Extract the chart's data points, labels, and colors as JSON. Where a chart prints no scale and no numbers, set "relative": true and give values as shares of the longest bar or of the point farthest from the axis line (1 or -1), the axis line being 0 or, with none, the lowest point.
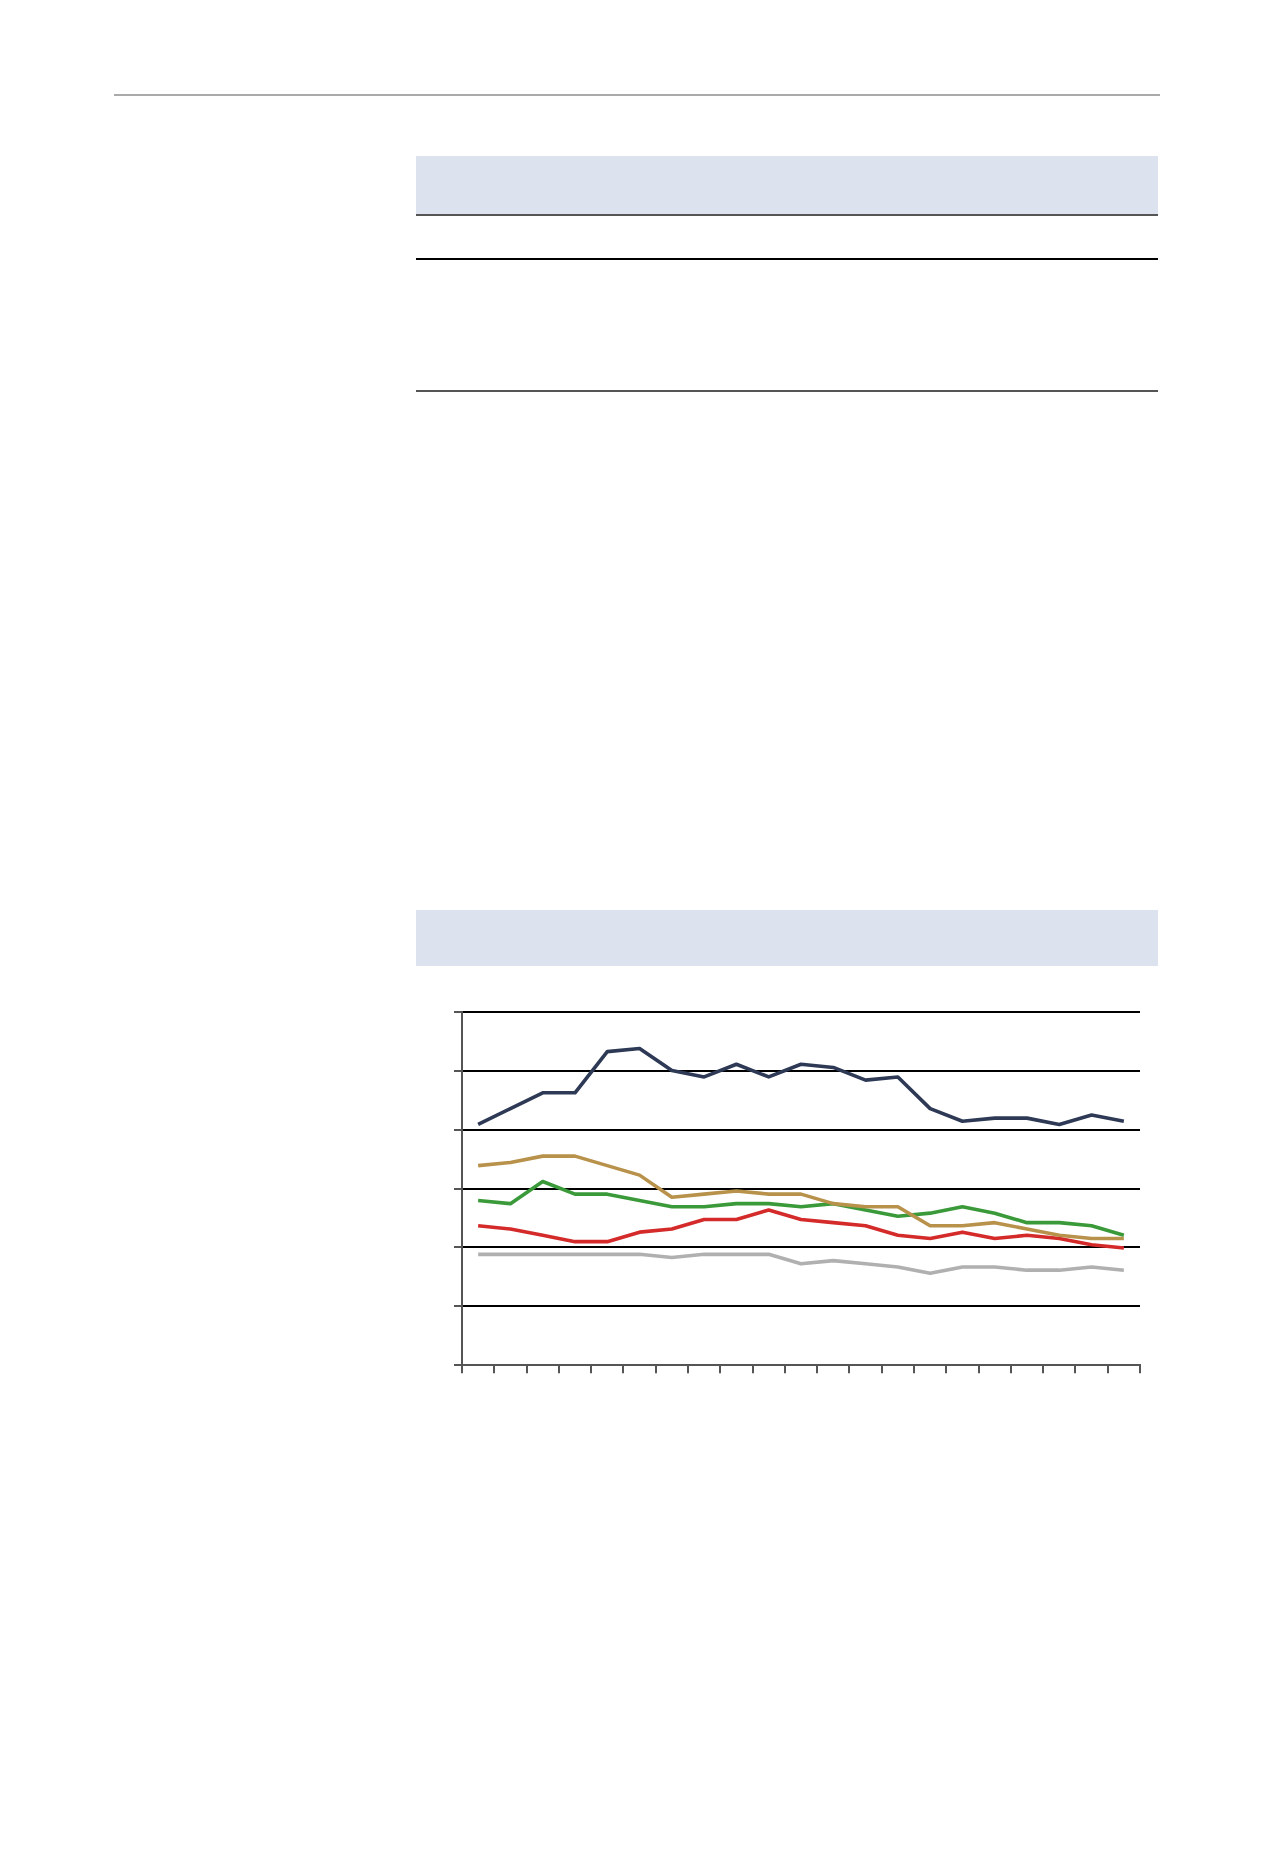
{
  "chart_data": {
    "type": "line",
    "relative": true,
    "grid": "y",
    "line_style": "solid",
    "marker": "none",
    "categories": [
      null,
      null,
      null,
      null,
      null,
      null,
      null,
      null,
      null,
      null,
      null,
      null,
      null,
      null,
      null,
      null,
      null,
      null,
      null,
      null,
      null
    ],
    "series": [
      {
        "color": "#2e3a55",
        "values": [
          0.76,
          0.81,
          0.86,
          0.86,
          0.99,
          1,
          0.93,
          0.91,
          0.95,
          0.91,
          0.95,
          0.94,
          0.9,
          0.91,
          0.81,
          0.77,
          0.78,
          0.78,
          0.76,
          0.79,
          0.77
        ]
      },
      {
        "color": "#b8924a",
        "values": [
          0.63,
          0.64,
          0.66,
          0.66,
          0.63,
          0.6,
          0.53,
          0.54,
          0.55,
          0.54,
          0.54,
          0.51,
          0.5,
          0.5,
          0.44,
          0.44,
          0.45,
          0.43,
          0.41,
          0.4,
          0.4
        ]
      },
      {
        "color": "#3a9a3a",
        "values": [
          0.52,
          0.51,
          0.58,
          0.54,
          0.54,
          0.52,
          0.5,
          0.5,
          0.51,
          0.51,
          0.5,
          0.51,
          0.49,
          0.47,
          0.48,
          0.5,
          0.48,
          0.45,
          0.45,
          0.44,
          0.41
        ]
      },
      {
        "color": "#d42a2a",
        "values": [
          0.44,
          0.43,
          0.41,
          0.39,
          0.39,
          0.42,
          0.43,
          0.46,
          0.46,
          0.49,
          0.46,
          0.45,
          0.44,
          0.41,
          0.4,
          0.42,
          0.4,
          0.41,
          0.4,
          0.38,
          0.37
        ]
      },
      {
        "color": "#b0b0b0",
        "values": [
          0.35,
          0.35,
          0.35,
          0.35,
          0.35,
          0.35,
          0.34,
          0.35,
          0.35,
          0.35,
          0.32,
          0.33,
          0.32,
          0.31,
          0.29,
          0.31,
          0.31,
          0.3,
          0.3,
          0.31,
          0.3
        ]
      }
    ]
  }
}
